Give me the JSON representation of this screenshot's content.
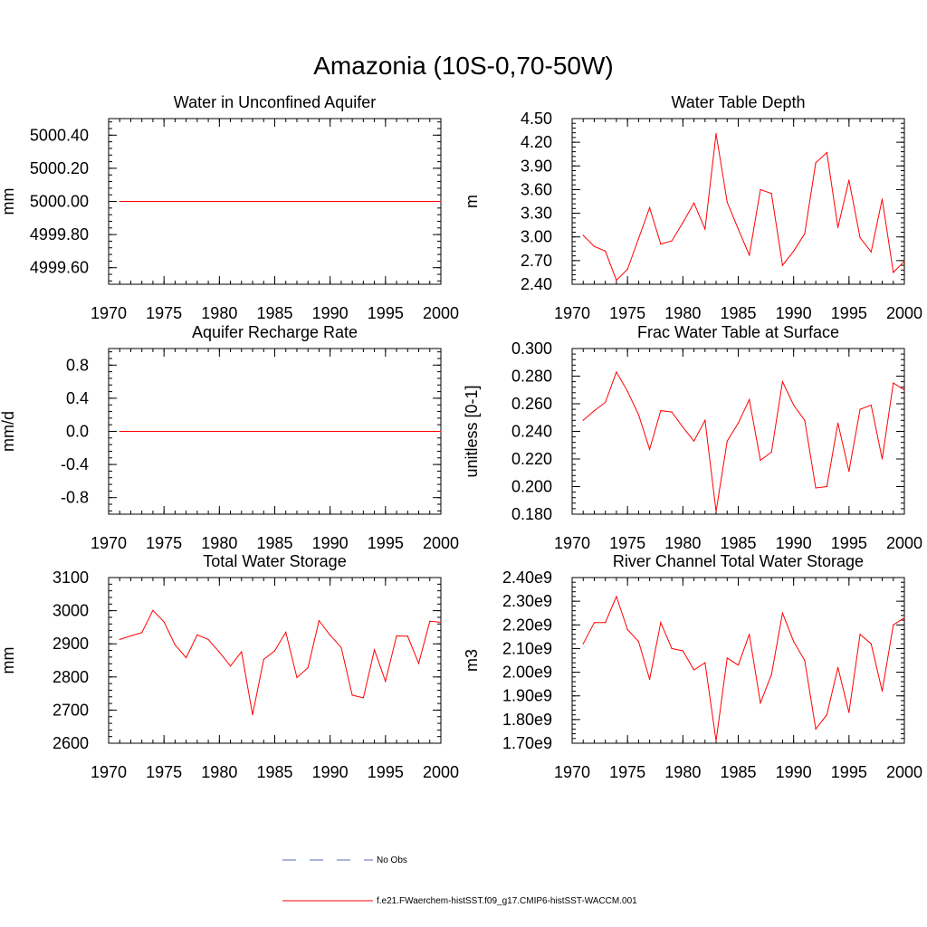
{
  "figure": {
    "title": "Amazonia (10S-0,70-50W)"
  },
  "legend": {
    "entries": [
      {
        "label": "No Obs",
        "color": "#5a6ab4",
        "dash": true
      },
      {
        "label": "f.e21.FWaerchem-histSST.f09_g17.CMIP6-histSST-WACCM.001",
        "color": "#ff0000",
        "dash": false
      }
    ]
  },
  "chart_data": [
    {
      "type": "line",
      "title": "Water in Unconfined Aquifer",
      "xlabel": "",
      "ylabel": "mm",
      "xlim": [
        1970,
        2000
      ],
      "ylim": [
        4999.5,
        5000.5
      ],
      "xticks": [
        1970,
        1975,
        1980,
        1985,
        1990,
        1995,
        2000
      ],
      "yticks": [
        4999.6,
        4999.8,
        5000.0,
        5000.2,
        5000.4
      ],
      "ytick_labels": [
        "4999.60",
        "4999.80",
        "5000.00",
        "5000.20",
        "5000.40"
      ],
      "x": [
        1971,
        1972,
        1973,
        1974,
        1975,
        1976,
        1977,
        1978,
        1979,
        1980,
        1981,
        1982,
        1983,
        1984,
        1985,
        1986,
        1987,
        1988,
        1989,
        1990,
        1991,
        1992,
        1993,
        1994,
        1995,
        1996,
        1997,
        1998,
        1999,
        2000
      ],
      "series": [
        {
          "color": "#ff0000",
          "values": [
            5000,
            5000,
            5000,
            5000,
            5000,
            5000,
            5000,
            5000,
            5000,
            5000,
            5000,
            5000,
            5000,
            5000,
            5000,
            5000,
            5000,
            5000,
            5000,
            5000,
            5000,
            5000,
            5000,
            5000,
            5000,
            5000,
            5000,
            5000,
            5000,
            5000
          ]
        }
      ]
    },
    {
      "type": "line",
      "title": "Water Table Depth",
      "xlabel": "",
      "ylabel": "m",
      "xlim": [
        1970,
        2000
      ],
      "ylim": [
        2.4,
        4.5
      ],
      "xticks": [
        1970,
        1975,
        1980,
        1985,
        1990,
        1995,
        2000
      ],
      "yticks": [
        2.4,
        2.7,
        3.0,
        3.3,
        3.6,
        3.9,
        4.2,
        4.5
      ],
      "ytick_labels": [
        "2.40",
        "2.70",
        "3.00",
        "3.30",
        "3.60",
        "3.90",
        "4.20",
        "4.50"
      ],
      "x": [
        1971,
        1972,
        1973,
        1974,
        1975,
        1976,
        1977,
        1978,
        1979,
        1980,
        1981,
        1982,
        1983,
        1984,
        1985,
        1986,
        1987,
        1988,
        1989,
        1990,
        1991,
        1992,
        1993,
        1994,
        1995,
        1996,
        1997,
        1998,
        1999,
        2000
      ],
      "series": [
        {
          "color": "#ff0000",
          "values": [
            3.02,
            2.88,
            2.82,
            2.45,
            2.59,
            2.98,
            3.37,
            2.91,
            2.95,
            3.18,
            3.43,
            3.1,
            4.31,
            3.44,
            3.1,
            2.77,
            3.6,
            3.55,
            2.64,
            2.82,
            3.04,
            3.94,
            4.07,
            3.12,
            3.72,
            2.99,
            2.81,
            3.48,
            2.55,
            2.69
          ]
        }
      ]
    },
    {
      "type": "line",
      "title": "Aquifer Recharge Rate",
      "xlabel": "",
      "ylabel": "mm/d",
      "xlim": [
        1970,
        2000
      ],
      "ylim": [
        -1.0,
        1.0
      ],
      "xticks": [
        1970,
        1975,
        1980,
        1985,
        1990,
        1995,
        2000
      ],
      "yticks": [
        -0.8,
        -0.4,
        0.0,
        0.4,
        0.8
      ],
      "ytick_labels": [
        "-0.8",
        "-0.4",
        "0.0",
        "0.4",
        "0.8"
      ],
      "x": [
        1971,
        1972,
        1973,
        1974,
        1975,
        1976,
        1977,
        1978,
        1979,
        1980,
        1981,
        1982,
        1983,
        1984,
        1985,
        1986,
        1987,
        1988,
        1989,
        1990,
        1991,
        1992,
        1993,
        1994,
        1995,
        1996,
        1997,
        1998,
        1999,
        2000
      ],
      "series": [
        {
          "color": "#ff0000",
          "values": [
            0,
            0,
            0,
            0,
            0,
            0,
            0,
            0,
            0,
            0,
            0,
            0,
            0,
            0,
            0,
            0,
            0,
            0,
            0,
            0,
            0,
            0,
            0,
            0,
            0,
            0,
            0,
            0,
            0,
            0
          ]
        }
      ]
    },
    {
      "type": "line",
      "title": "Frac Water Table at Surface",
      "xlabel": "",
      "ylabel": "unitless [0-1]",
      "xlim": [
        1970,
        2000
      ],
      "ylim": [
        0.18,
        0.3
      ],
      "xticks": [
        1970,
        1975,
        1980,
        1985,
        1990,
        1995,
        2000
      ],
      "yticks": [
        0.18,
        0.2,
        0.22,
        0.24,
        0.26,
        0.28,
        0.3
      ],
      "ytick_labels": [
        "0.180",
        "0.200",
        "0.220",
        "0.240",
        "0.260",
        "0.280",
        "0.300"
      ],
      "x": [
        1971,
        1972,
        1973,
        1974,
        1975,
        1976,
        1977,
        1978,
        1979,
        1980,
        1981,
        1982,
        1983,
        1984,
        1985,
        1986,
        1987,
        1988,
        1989,
        1990,
        1991,
        1992,
        1993,
        1994,
        1995,
        1996,
        1997,
        1998,
        1999,
        2000
      ],
      "series": [
        {
          "color": "#ff0000",
          "values": [
            0.248,
            0.255,
            0.261,
            0.283,
            0.269,
            0.252,
            0.227,
            0.255,
            0.254,
            0.243,
            0.233,
            0.248,
            0.182,
            0.233,
            0.246,
            0.263,
            0.219,
            0.225,
            0.276,
            0.259,
            0.248,
            0.199,
            0.2,
            0.246,
            0.211,
            0.256,
            0.259,
            0.22,
            0.275,
            0.27
          ]
        }
      ]
    },
    {
      "type": "line",
      "title": "Total Water Storage",
      "xlabel": "",
      "ylabel": "mm",
      "xlim": [
        1970,
        2000
      ],
      "ylim": [
        2600,
        3100
      ],
      "xticks": [
        1970,
        1975,
        1980,
        1985,
        1990,
        1995,
        2000
      ],
      "yticks": [
        2600,
        2700,
        2800,
        2900,
        3000,
        3100
      ],
      "ytick_labels": [
        "2600",
        "2700",
        "2800",
        "2900",
        "3000",
        "3100"
      ],
      "x": [
        1971,
        1972,
        1973,
        1974,
        1975,
        1976,
        1977,
        1978,
        1979,
        1980,
        1981,
        1982,
        1983,
        1984,
        1985,
        1986,
        1987,
        1988,
        1989,
        1990,
        1991,
        1992,
        1993,
        1994,
        1995,
        1996,
        1997,
        1998,
        1999,
        2000
      ],
      "series": [
        {
          "color": "#ff0000",
          "values": [
            2913,
            2924,
            2934,
            3001,
            2966,
            2897,
            2858,
            2927,
            2913,
            2875,
            2833,
            2876,
            2686,
            2853,
            2879,
            2935,
            2798,
            2828,
            2970,
            2926,
            2889,
            2745,
            2737,
            2882,
            2787,
            2924,
            2923,
            2841,
            2968,
            2965
          ]
        }
      ]
    },
    {
      "type": "line",
      "title": "River Channel Total Water Storage",
      "xlabel": "",
      "ylabel": "m3",
      "xlim": [
        1970,
        2000
      ],
      "ylim": [
        1700000000.0,
        2400000000.0
      ],
      "xticks": [
        1970,
        1975,
        1980,
        1985,
        1990,
        1995,
        2000
      ],
      "yticks": [
        1700000000.0,
        1800000000.0,
        1900000000.0,
        2000000000.0,
        2100000000.0,
        2200000000.0,
        2300000000.0,
        2400000000.0
      ],
      "ytick_labels": [
        "1.70e9",
        "1.80e9",
        "1.90e9",
        "2.00e9",
        "2.10e9",
        "2.20e9",
        "2.30e9",
        "2.40e9"
      ],
      "x": [
        1971,
        1972,
        1973,
        1974,
        1975,
        1976,
        1977,
        1978,
        1979,
        1980,
        1981,
        1982,
        1983,
        1984,
        1985,
        1986,
        1987,
        1988,
        1989,
        1990,
        1991,
        1992,
        1993,
        1994,
        1995,
        1996,
        1997,
        1998,
        1999,
        2000
      ],
      "series": [
        {
          "color": "#ff0000",
          "values": [
            2120000000.0,
            2210000000.0,
            2210000000.0,
            2320000000.0,
            2180000000.0,
            2130000000.0,
            1970000000.0,
            2210000000.0,
            2100000000.0,
            2090000000.0,
            2010000000.0,
            2040000000.0,
            1710000000.0,
            2060000000.0,
            2030000000.0,
            2160000000.0,
            1870000000.0,
            1990000000.0,
            2250000000.0,
            2130000000.0,
            2050000000.0,
            1760000000.0,
            1820000000.0,
            2020000000.0,
            1830000000.0,
            2160000000.0,
            2120000000.0,
            1920000000.0,
            2200000000.0,
            2230000000.0
          ]
        }
      ]
    }
  ]
}
